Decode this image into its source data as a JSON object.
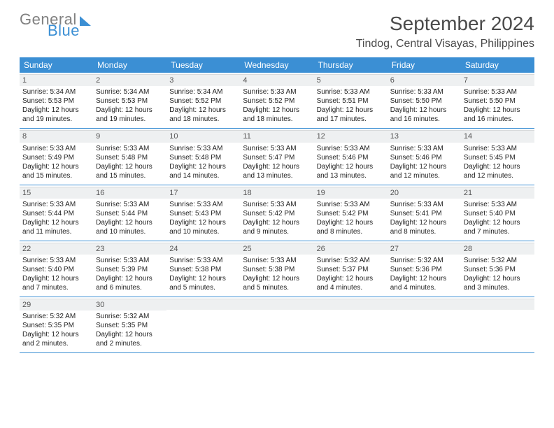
{
  "brand": {
    "part1": "General",
    "part2": "Blue"
  },
  "title": {
    "month": "September 2024",
    "location": "Tindog, Central Visayas, Philippines"
  },
  "style": {
    "accent": "#3b8fd4",
    "header_text": "#ffffff",
    "daynum_bg": "#eef0f1",
    "body_text": "#333333",
    "title_text": "#4a4a4a",
    "page_bg": "#ffffff",
    "border": "#3b8fd4",
    "font_family": "Arial",
    "month_fontsize": 28,
    "location_fontsize": 16,
    "weekday_fontsize": 12,
    "cell_fontsize": 10
  },
  "weekdays": [
    "Sunday",
    "Monday",
    "Tuesday",
    "Wednesday",
    "Thursday",
    "Friday",
    "Saturday"
  ],
  "weeks": [
    [
      {
        "n": "1",
        "sr": "Sunrise: 5:34 AM",
        "ss": "Sunset: 5:53 PM",
        "d1": "Daylight: 12 hours",
        "d2": "and 19 minutes."
      },
      {
        "n": "2",
        "sr": "Sunrise: 5:34 AM",
        "ss": "Sunset: 5:53 PM",
        "d1": "Daylight: 12 hours",
        "d2": "and 19 minutes."
      },
      {
        "n": "3",
        "sr": "Sunrise: 5:34 AM",
        "ss": "Sunset: 5:52 PM",
        "d1": "Daylight: 12 hours",
        "d2": "and 18 minutes."
      },
      {
        "n": "4",
        "sr": "Sunrise: 5:33 AM",
        "ss": "Sunset: 5:52 PM",
        "d1": "Daylight: 12 hours",
        "d2": "and 18 minutes."
      },
      {
        "n": "5",
        "sr": "Sunrise: 5:33 AM",
        "ss": "Sunset: 5:51 PM",
        "d1": "Daylight: 12 hours",
        "d2": "and 17 minutes."
      },
      {
        "n": "6",
        "sr": "Sunrise: 5:33 AM",
        "ss": "Sunset: 5:50 PM",
        "d1": "Daylight: 12 hours",
        "d2": "and 16 minutes."
      },
      {
        "n": "7",
        "sr": "Sunrise: 5:33 AM",
        "ss": "Sunset: 5:50 PM",
        "d1": "Daylight: 12 hours",
        "d2": "and 16 minutes."
      }
    ],
    [
      {
        "n": "8",
        "sr": "Sunrise: 5:33 AM",
        "ss": "Sunset: 5:49 PM",
        "d1": "Daylight: 12 hours",
        "d2": "and 15 minutes."
      },
      {
        "n": "9",
        "sr": "Sunrise: 5:33 AM",
        "ss": "Sunset: 5:48 PM",
        "d1": "Daylight: 12 hours",
        "d2": "and 15 minutes."
      },
      {
        "n": "10",
        "sr": "Sunrise: 5:33 AM",
        "ss": "Sunset: 5:48 PM",
        "d1": "Daylight: 12 hours",
        "d2": "and 14 minutes."
      },
      {
        "n": "11",
        "sr": "Sunrise: 5:33 AM",
        "ss": "Sunset: 5:47 PM",
        "d1": "Daylight: 12 hours",
        "d2": "and 13 minutes."
      },
      {
        "n": "12",
        "sr": "Sunrise: 5:33 AM",
        "ss": "Sunset: 5:46 PM",
        "d1": "Daylight: 12 hours",
        "d2": "and 13 minutes."
      },
      {
        "n": "13",
        "sr": "Sunrise: 5:33 AM",
        "ss": "Sunset: 5:46 PM",
        "d1": "Daylight: 12 hours",
        "d2": "and 12 minutes."
      },
      {
        "n": "14",
        "sr": "Sunrise: 5:33 AM",
        "ss": "Sunset: 5:45 PM",
        "d1": "Daylight: 12 hours",
        "d2": "and 12 minutes."
      }
    ],
    [
      {
        "n": "15",
        "sr": "Sunrise: 5:33 AM",
        "ss": "Sunset: 5:44 PM",
        "d1": "Daylight: 12 hours",
        "d2": "and 11 minutes."
      },
      {
        "n": "16",
        "sr": "Sunrise: 5:33 AM",
        "ss": "Sunset: 5:44 PM",
        "d1": "Daylight: 12 hours",
        "d2": "and 10 minutes."
      },
      {
        "n": "17",
        "sr": "Sunrise: 5:33 AM",
        "ss": "Sunset: 5:43 PM",
        "d1": "Daylight: 12 hours",
        "d2": "and 10 minutes."
      },
      {
        "n": "18",
        "sr": "Sunrise: 5:33 AM",
        "ss": "Sunset: 5:42 PM",
        "d1": "Daylight: 12 hours",
        "d2": "and 9 minutes."
      },
      {
        "n": "19",
        "sr": "Sunrise: 5:33 AM",
        "ss": "Sunset: 5:42 PM",
        "d1": "Daylight: 12 hours",
        "d2": "and 8 minutes."
      },
      {
        "n": "20",
        "sr": "Sunrise: 5:33 AM",
        "ss": "Sunset: 5:41 PM",
        "d1": "Daylight: 12 hours",
        "d2": "and 8 minutes."
      },
      {
        "n": "21",
        "sr": "Sunrise: 5:33 AM",
        "ss": "Sunset: 5:40 PM",
        "d1": "Daylight: 12 hours",
        "d2": "and 7 minutes."
      }
    ],
    [
      {
        "n": "22",
        "sr": "Sunrise: 5:33 AM",
        "ss": "Sunset: 5:40 PM",
        "d1": "Daylight: 12 hours",
        "d2": "and 7 minutes."
      },
      {
        "n": "23",
        "sr": "Sunrise: 5:33 AM",
        "ss": "Sunset: 5:39 PM",
        "d1": "Daylight: 12 hours",
        "d2": "and 6 minutes."
      },
      {
        "n": "24",
        "sr": "Sunrise: 5:33 AM",
        "ss": "Sunset: 5:38 PM",
        "d1": "Daylight: 12 hours",
        "d2": "and 5 minutes."
      },
      {
        "n": "25",
        "sr": "Sunrise: 5:33 AM",
        "ss": "Sunset: 5:38 PM",
        "d1": "Daylight: 12 hours",
        "d2": "and 5 minutes."
      },
      {
        "n": "26",
        "sr": "Sunrise: 5:32 AM",
        "ss": "Sunset: 5:37 PM",
        "d1": "Daylight: 12 hours",
        "d2": "and 4 minutes."
      },
      {
        "n": "27",
        "sr": "Sunrise: 5:32 AM",
        "ss": "Sunset: 5:36 PM",
        "d1": "Daylight: 12 hours",
        "d2": "and 4 minutes."
      },
      {
        "n": "28",
        "sr": "Sunrise: 5:32 AM",
        "ss": "Sunset: 5:36 PM",
        "d1": "Daylight: 12 hours",
        "d2": "and 3 minutes."
      }
    ],
    [
      {
        "n": "29",
        "sr": "Sunrise: 5:32 AM",
        "ss": "Sunset: 5:35 PM",
        "d1": "Daylight: 12 hours",
        "d2": "and 2 minutes."
      },
      {
        "n": "30",
        "sr": "Sunrise: 5:32 AM",
        "ss": "Sunset: 5:35 PM",
        "d1": "Daylight: 12 hours",
        "d2": "and 2 minutes."
      },
      null,
      null,
      null,
      null,
      null
    ]
  ]
}
